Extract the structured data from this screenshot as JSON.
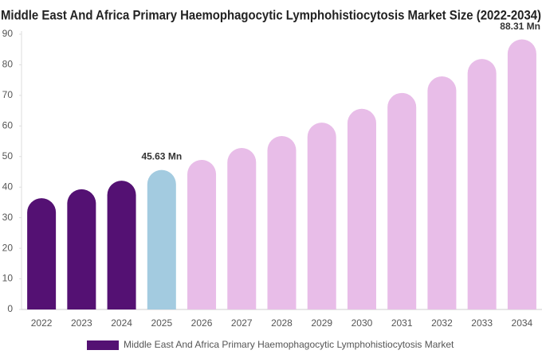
{
  "chart_data": {
    "type": "bar",
    "title": "Middle East And Africa Primary Haemophagocytic Lymphohistiocytosis Market Size (2022-2034)",
    "categories": [
      "2022",
      "2023",
      "2024",
      "2025",
      "2026",
      "2027",
      "2028",
      "2029",
      "2030",
      "2031",
      "2032",
      "2033",
      "2034"
    ],
    "series": [
      {
        "name": "Middle East And Africa Primary Haemophagocytic Lymphohistiocytosis Market",
        "color": "#541173",
        "values": [
          36.4,
          39.3,
          42.1,
          45.63,
          48.9,
          52.8,
          56.7,
          61.1,
          65.6,
          70.8,
          76.2,
          81.9,
          88.31
        ],
        "value_labels": [
          null,
          null,
          null,
          "45.63 Mn",
          null,
          null,
          null,
          null,
          null,
          null,
          null,
          null,
          "88.31 Mn"
        ],
        "colors": [
          "#541173",
          "#541173",
          "#541173",
          "#a3cbe0",
          "#e8bde8",
          "#e8bde8",
          "#e8bde8",
          "#e8bde8",
          "#e8bde8",
          "#e8bde8",
          "#e8bde8",
          "#e8bde8",
          "#e8bde8"
        ]
      }
    ],
    "ylim": [
      0,
      90
    ],
    "yticks": [
      0,
      10,
      20,
      30,
      40,
      50,
      60,
      70,
      80,
      90
    ],
    "grid": false
  }
}
